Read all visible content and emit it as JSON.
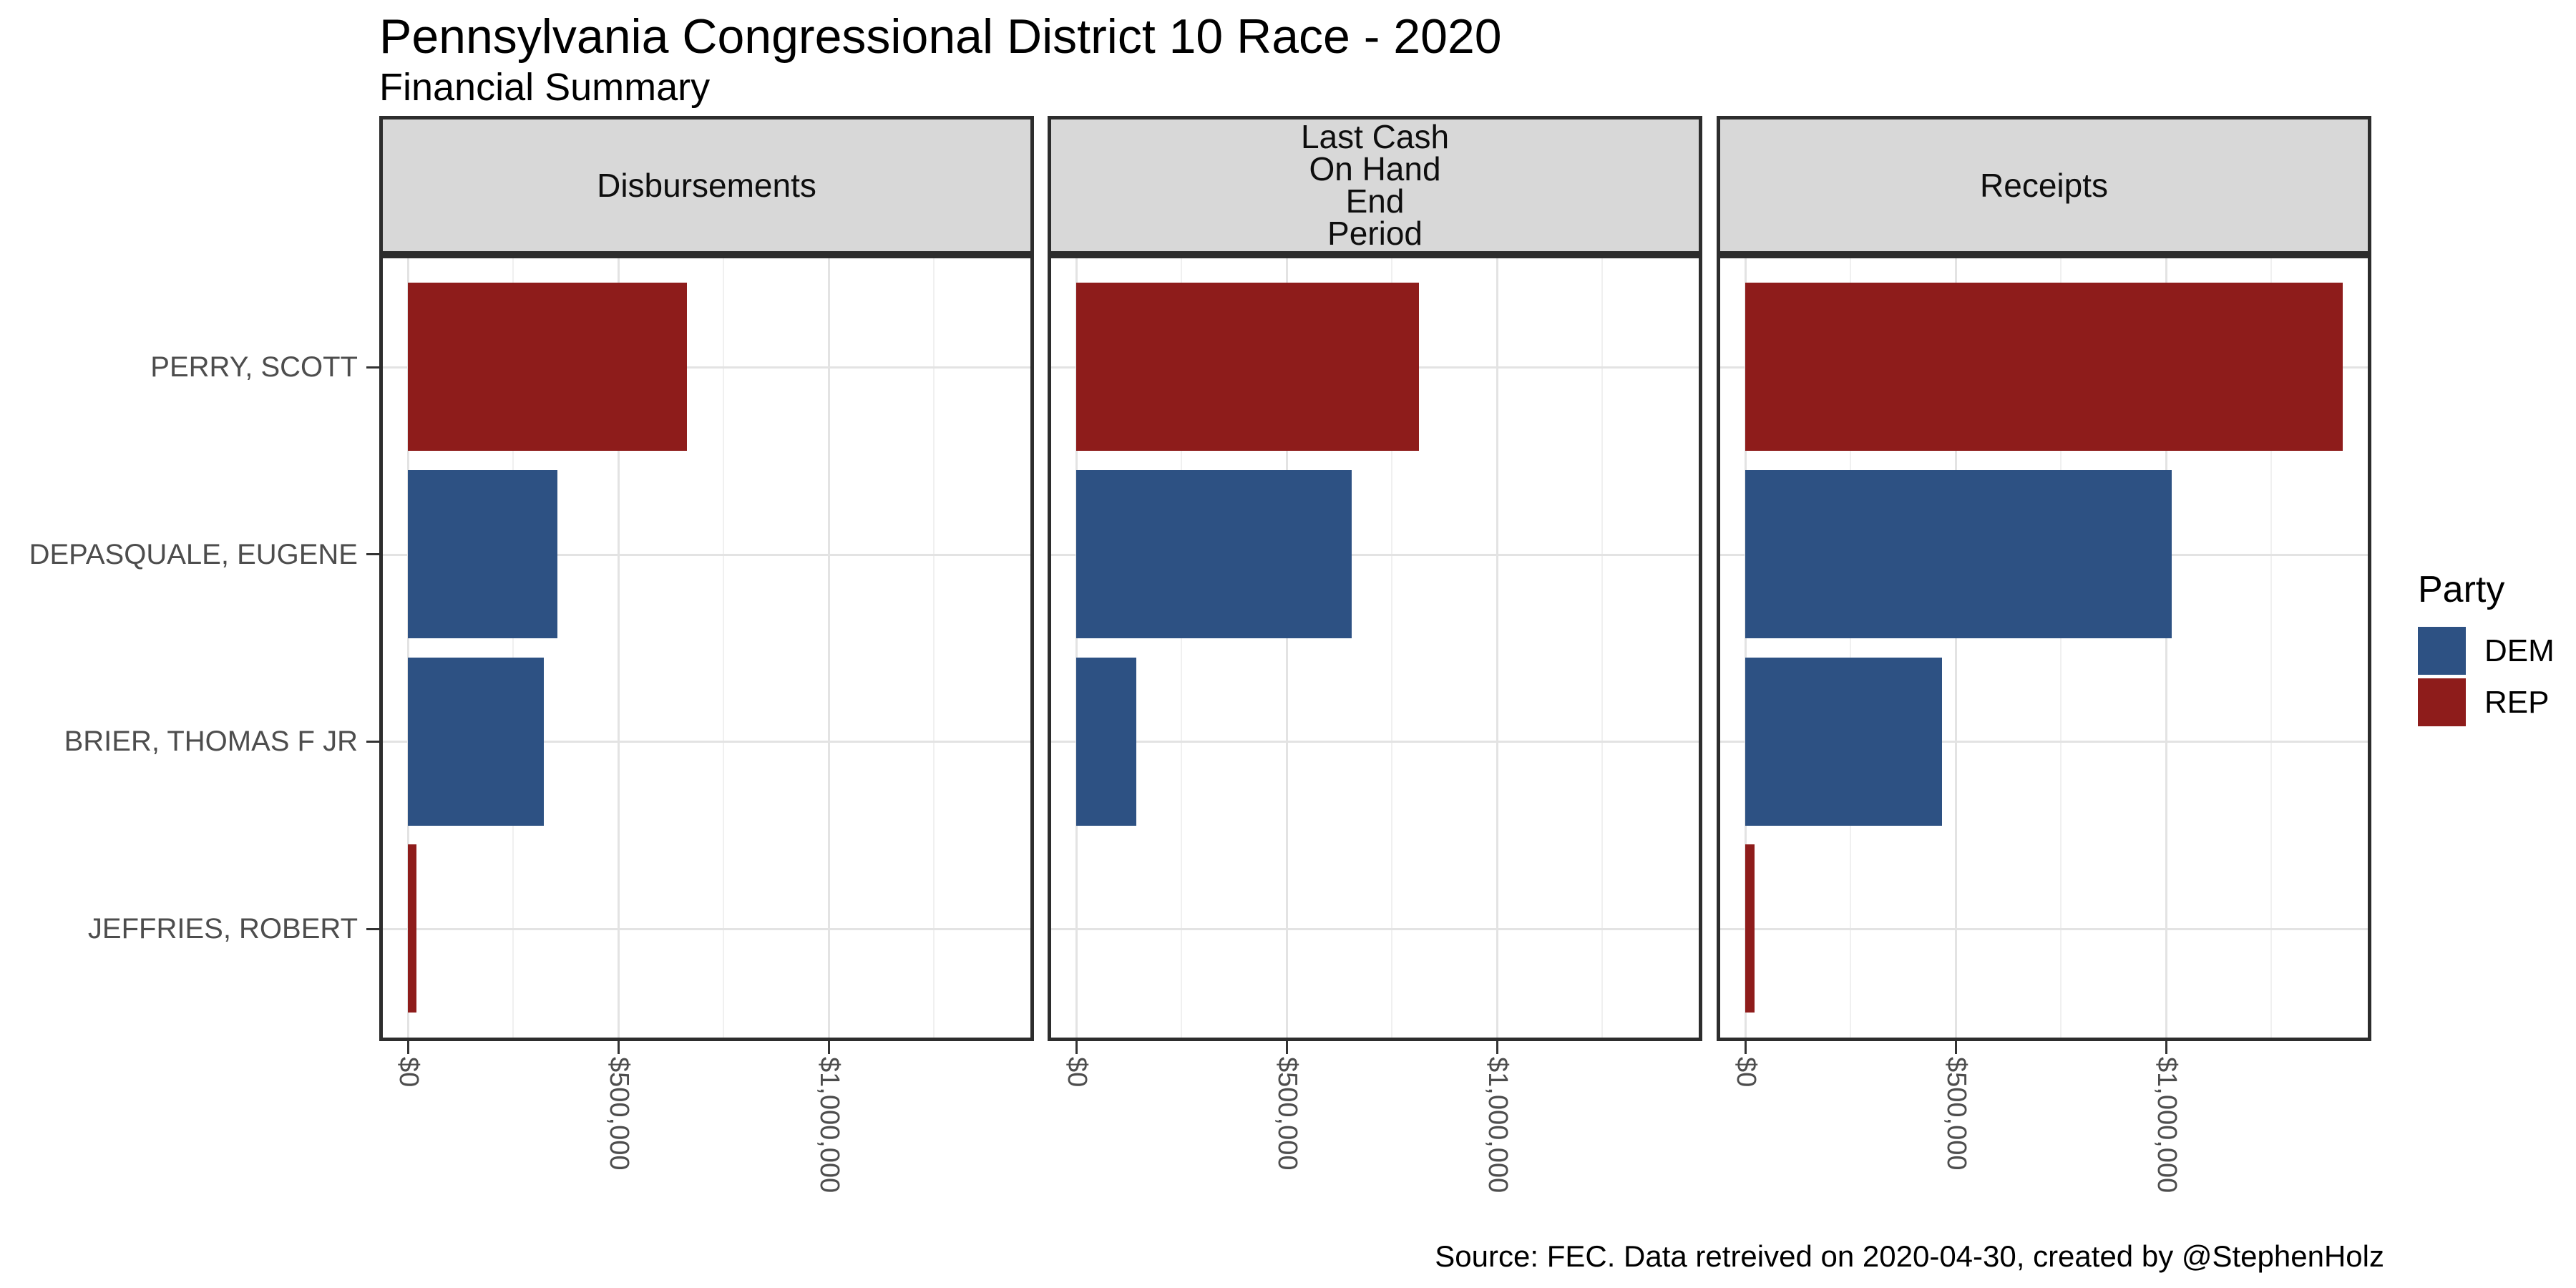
{
  "chart_data": {
    "type": "bar",
    "orientation": "horizontal",
    "title": "Pennsylvania Congressional District 10 Race - 2020",
    "subtitle": "Financial Summary",
    "caption": "Source: FEC. Data retreived on 2020-04-30, created by @StephenHolz",
    "categories": [
      "PERRY, SCOTT",
      "DEPASQUALE, EUGENE",
      "BRIER, THOMAS F JR",
      "JEFFRIES, ROBERT"
    ],
    "category_parties": [
      "REP",
      "DEM",
      "DEM",
      "REP"
    ],
    "facets": [
      {
        "label": "Disbursements",
        "values": [
          663000,
          355000,
          323000,
          20000
        ]
      },
      {
        "label": "Last Cash\nOn Hand\nEnd\nPeriod",
        "values": [
          815000,
          654000,
          143000,
          0
        ]
      },
      {
        "label": "Receipts",
        "values": [
          1420000,
          1013000,
          468000,
          22000
        ]
      }
    ],
    "x_axis": {
      "tick_values": [
        0,
        500000,
        1000000
      ],
      "tick_labels": [
        "$0",
        "$500,000",
        "$1,000,000"
      ],
      "minor_tick_values": [
        250000,
        750000,
        1250000
      ],
      "xlim": [
        -70000,
        1490000
      ]
    },
    "ylabel": "",
    "xlabel": "",
    "grid": true,
    "legend": {
      "title": "Party",
      "position": "right",
      "entries": [
        {
          "label": "DEM",
          "color": "#2D5183"
        },
        {
          "label": "REP",
          "color": "#8E1C1B"
        }
      ]
    },
    "colors": {
      "dem": "#2D5183",
      "rep": "#8E1C1B",
      "strip_fill": "#D8D8D8",
      "panel_border": "#2D2D2D",
      "grid_major": "#E3E3E3",
      "grid_minor": "#F0F0F0",
      "axis_text": "#4D4D4D"
    }
  }
}
